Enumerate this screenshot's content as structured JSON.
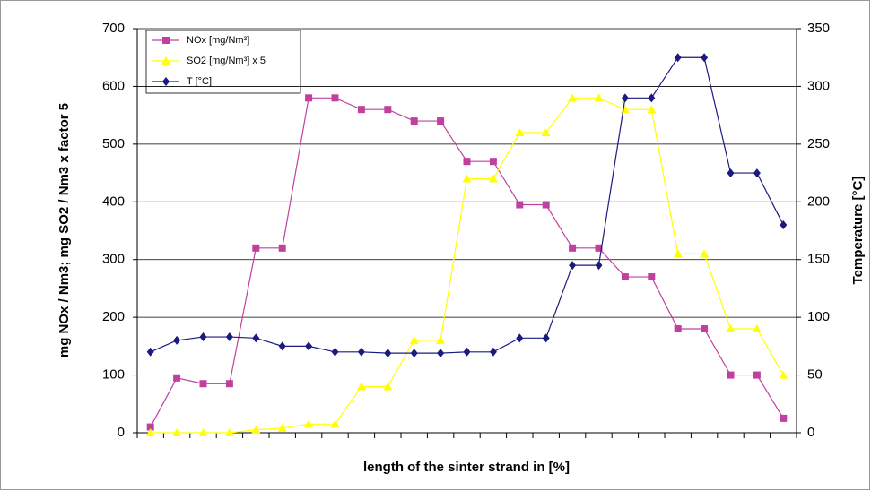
{
  "chart_data": {
    "type": "line",
    "x_label": "length of the sinter strand in [%]",
    "y_label": "mg NOx / Nm3; mg SO2 / Nm3 x factor 5",
    "y2_label": "Temperature [°C]",
    "categories": [
      null,
      null,
      null,
      null,
      null,
      null,
      null,
      null,
      null,
      null,
      null,
      null,
      null,
      null,
      null,
      null,
      null,
      null,
      null,
      null,
      null,
      null,
      null,
      null,
      null
    ],
    "series": [
      {
        "name": "NOx [mg/Nm³]",
        "color": "#c040a0",
        "marker": "square",
        "values": [
          10,
          95,
          85,
          85,
          320,
          320,
          580,
          580,
          560,
          560,
          540,
          540,
          470,
          470,
          395,
          395,
          320,
          320,
          270,
          270,
          180,
          180,
          100,
          100,
          25
        ]
      },
      {
        "name": "SO2 [mg/Nm³] x 5",
        "color": "#ffff00",
        "marker": "triangle",
        "values": [
          0,
          0,
          0,
          0,
          5,
          8,
          15,
          15,
          80,
          80,
          160,
          160,
          440,
          440,
          520,
          520,
          580,
          580,
          560,
          560,
          310,
          310,
          180,
          180,
          100
        ]
      },
      {
        "name": "T [°C]",
        "color": "#1a1a80",
        "marker": "diamond",
        "axis": "y2",
        "values": [
          70,
          80,
          83,
          83,
          82,
          75,
          75,
          70,
          70,
          69,
          69,
          69,
          70,
          70,
          82,
          82,
          145,
          145,
          290,
          290,
          325,
          325,
          225,
          225,
          180
        ]
      }
    ],
    "ylim": [
      0,
      700
    ],
    "yticks": [
      0,
      100,
      200,
      300,
      400,
      500,
      600,
      700
    ],
    "y2lim": [
      0,
      350
    ],
    "y2ticks": [
      0,
      50,
      100,
      150,
      200,
      250,
      300,
      350
    ],
    "grid": true,
    "legend": "top-left"
  }
}
